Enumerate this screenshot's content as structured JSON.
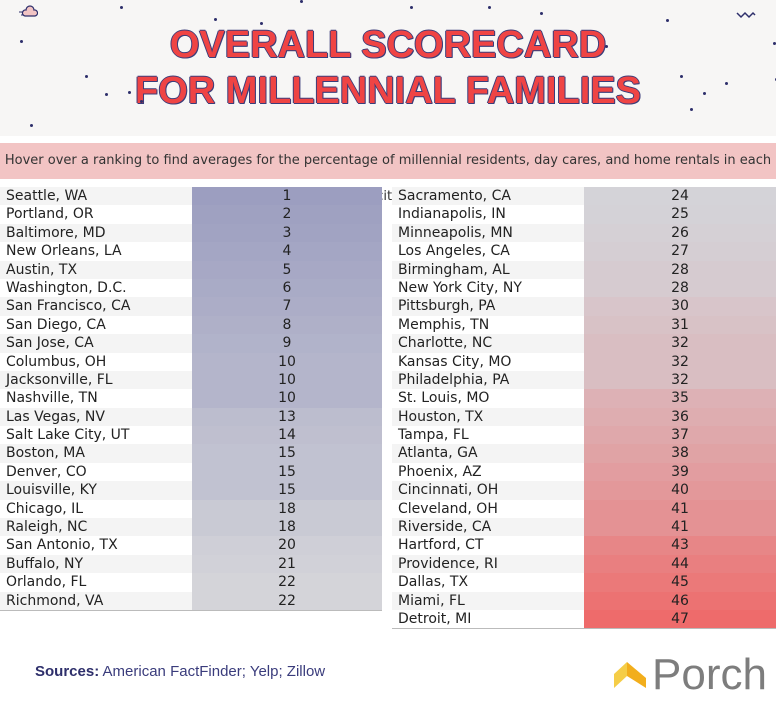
{
  "header": {
    "title_line1": "OVERALL SCORECARD",
    "title_line2": "FOR MILLENNIAL FAMILIES",
    "instruction": "Hover over a ranking to find averages for the percentage of millennial residents, day cares, and home rentals in each city"
  },
  "left_table": [
    {
      "city": "Seattle, WA",
      "rank": "1"
    },
    {
      "city": "Portland, OR",
      "rank": "2"
    },
    {
      "city": "Baltimore, MD",
      "rank": "3"
    },
    {
      "city": "New Orleans, LA",
      "rank": "4"
    },
    {
      "city": "Austin, TX",
      "rank": "5"
    },
    {
      "city": "Washington, D.C.",
      "rank": "6"
    },
    {
      "city": "San Francisco, CA",
      "rank": "7"
    },
    {
      "city": "San Diego, CA",
      "rank": "8"
    },
    {
      "city": "San Jose, CA",
      "rank": "9"
    },
    {
      "city": "Columbus, OH",
      "rank": "10"
    },
    {
      "city": "Jacksonville, FL",
      "rank": "10"
    },
    {
      "city": "Nashville, TN",
      "rank": "10"
    },
    {
      "city": "Las Vegas, NV",
      "rank": "13"
    },
    {
      "city": "Salt Lake City, UT",
      "rank": "14"
    },
    {
      "city": "Boston, MA",
      "rank": "15"
    },
    {
      "city": "Denver, CO",
      "rank": "15"
    },
    {
      "city": "Louisville, KY",
      "rank": "15"
    },
    {
      "city": "Chicago, IL",
      "rank": "18"
    },
    {
      "city": "Raleigh, NC",
      "rank": "18"
    },
    {
      "city": "San Antonio, TX",
      "rank": "20"
    },
    {
      "city": "Buffalo, NY",
      "rank": "21"
    },
    {
      "city": "Orlando, FL",
      "rank": "22"
    },
    {
      "city": "Richmond, VA",
      "rank": "22"
    }
  ],
  "right_table": [
    {
      "city": "Sacramento, CA",
      "rank": "24"
    },
    {
      "city": "Indianapolis, IN",
      "rank": "25"
    },
    {
      "city": "Minneapolis, MN",
      "rank": "26"
    },
    {
      "city": "Los Angeles, CA",
      "rank": "27"
    },
    {
      "city": "Birmingham, AL",
      "rank": "28"
    },
    {
      "city": "New York City, NY",
      "rank": "28"
    },
    {
      "city": "Pittsburgh, PA",
      "rank": "30"
    },
    {
      "city": "Memphis, TN",
      "rank": "31"
    },
    {
      "city": "Charlotte, NC",
      "rank": "32"
    },
    {
      "city": "Kansas City, MO",
      "rank": "32"
    },
    {
      "city": "Philadelphia, PA",
      "rank": "32"
    },
    {
      "city": "St. Louis, MO",
      "rank": "35"
    },
    {
      "city": "Houston, TX",
      "rank": "36"
    },
    {
      "city": "Tampa, FL",
      "rank": "37"
    },
    {
      "city": "Atlanta, GA",
      "rank": "38"
    },
    {
      "city": "Phoenix, AZ",
      "rank": "39"
    },
    {
      "city": "Cincinnati, OH",
      "rank": "40"
    },
    {
      "city": "Cleveland, OH",
      "rank": "41"
    },
    {
      "city": "Riverside, CA",
      "rank": "41"
    },
    {
      "city": "Hartford, CT",
      "rank": "43"
    },
    {
      "city": "Providence, RI",
      "rank": "44"
    },
    {
      "city": "Dallas, TX",
      "rank": "45"
    },
    {
      "city": "Miami, FL",
      "rank": "46"
    },
    {
      "city": "Detroit, MI",
      "rank": "47"
    }
  ],
  "footer": {
    "sources_label": "Sources:",
    "sources_text": "American FactFinder; Yelp; Zillow",
    "brand": "Porch"
  },
  "colors": {
    "best": "#9c9ec0",
    "mid": "#d4d4d9",
    "worst": "#ee6b6b",
    "title": "#ef4444"
  }
}
